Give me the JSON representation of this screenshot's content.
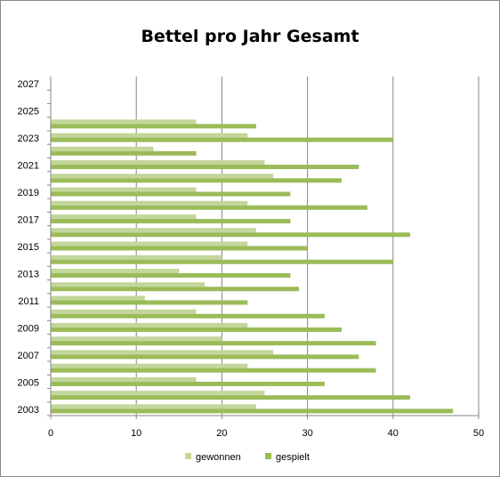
{
  "chart_data": {
    "type": "bar",
    "orientation": "horizontal",
    "title": "Bettel pro Jahr Gesamt",
    "xlabel": "",
    "ylabel": "",
    "xlim": [
      0,
      50
    ],
    "x_ticks": [
      0,
      10,
      20,
      30,
      40,
      50
    ],
    "grid": true,
    "legend": "bottom",
    "categories": [
      "2003",
      "2004",
      "2005",
      "2006",
      "2007",
      "2008",
      "2009",
      "2010",
      "2011",
      "2012",
      "2013",
      "2014",
      "2015",
      "2016",
      "2017",
      "2018",
      "2019",
      "2020",
      "2021",
      "2022",
      "2023",
      "2024",
      "2025",
      "2026",
      "2027"
    ],
    "category_tick_labels": [
      "2003",
      "2005",
      "2007",
      "2009",
      "2011",
      "2013",
      "2015",
      "2017",
      "2019",
      "2021",
      "2023",
      "2025",
      "2027"
    ],
    "series": [
      {
        "name": "gewonnen",
        "color": "#c3d69b",
        "values": [
          24,
          25,
          17,
          23,
          26,
          20,
          23,
          17,
          11,
          18,
          15,
          20,
          23,
          24,
          17,
          23,
          17,
          26,
          25,
          12,
          23,
          17,
          null,
          null,
          null
        ]
      },
      {
        "name": "gespielt",
        "color": "#9bbb59",
        "values": [
          47,
          42,
          32,
          38,
          36,
          38,
          34,
          32,
          23,
          29,
          28,
          40,
          30,
          42,
          28,
          37,
          28,
          34,
          36,
          17,
          40,
          24,
          null,
          null,
          null
        ]
      }
    ]
  }
}
